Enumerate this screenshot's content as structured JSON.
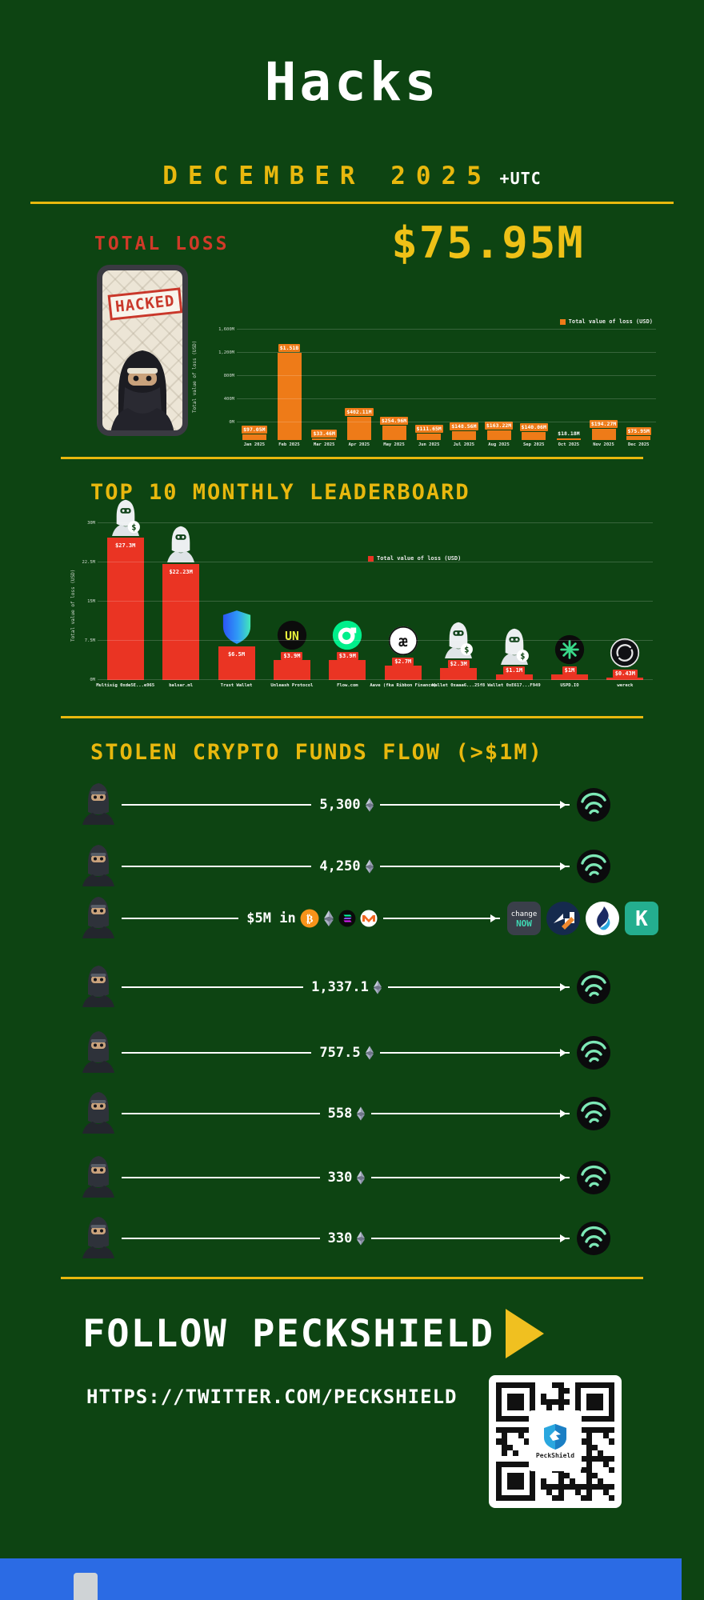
{
  "colors": {
    "background": "#0d4412",
    "accent_yellow": "#e8b80e",
    "title_red": "#d03a28",
    "bar_orange": "#ee7b18",
    "bar_red": "#ea3423",
    "footer_blue": "#2b6be4",
    "white": "#ffffff"
  },
  "header": {
    "title": "Hacks",
    "subtitle": "DECEMBER 2025",
    "timezone": "+UTC"
  },
  "total_loss": {
    "label": "TOTAL LOSS",
    "amount": "$75.95M",
    "sticker": "HACKED"
  },
  "chart_data": [
    {
      "type": "bar",
      "name": "monthly-loss-2025",
      "legend": "Total value of loss (USD)",
      "ylabel": "Total value of loss (USD)",
      "ylim": [
        0,
        1600
      ],
      "yticks": [
        "1,600M",
        "1,200M",
        "800M",
        "400M",
        "0M"
      ],
      "grid": true,
      "legend_position": "top-right",
      "categories": [
        "Jan 2025",
        "Feb 2025",
        "Mar 2025",
        "Apr 2025",
        "May 2025",
        "Jun 2025",
        "Jul 2025",
        "Aug 2025",
        "Sep 2025",
        "Oct 2025",
        "Nov 2025",
        "Dec 2025"
      ],
      "values": [
        97.05,
        1510,
        33.46,
        402.11,
        254.96,
        111.65,
        148.56,
        163.22,
        140.06,
        18.18,
        194.27,
        75.95
      ],
      "labels": [
        "$97.05M",
        "$1.51B",
        "$33.46M",
        "$402.11M",
        "$254.96M",
        "$111.65M",
        "$148.56M",
        "$163.22M",
        "$140.06M",
        "$18.18M",
        "$194.27M",
        "$75.95M"
      ],
      "bar_color": "#ee7b18"
    },
    {
      "type": "bar",
      "name": "top10-monthly-leaderboard",
      "legend": "Total value of loss (USD)",
      "ylabel": "Total value of loss (USD)",
      "ylim": [
        0,
        30
      ],
      "yticks": [
        "30M",
        "22.5M",
        "15M",
        "7.5M",
        "0M"
      ],
      "grid": true,
      "legend_position": "top-center",
      "categories": [
        "Multisig 0xde5E...e965",
        "balsar.ml",
        "Trust Wallet",
        "Unleash Protocol",
        "Flow.com",
        "Aave (fka Ribbon Finance)",
        "Wallet 0xaaa6...25f8",
        "Wallet 0xE617...F949",
        "USPD.IO",
        "wereck"
      ],
      "values": [
        27.3,
        22.23,
        6.5,
        3.9,
        3.9,
        2.7,
        2.3,
        1.1,
        1.0,
        0.43
      ],
      "labels": [
        "$27.3M",
        "$22.23M",
        "$6.5M",
        "$3.9M",
        "$3.9M",
        "$2.7M",
        "$2.3M",
        "$1.1M",
        "$1M",
        "$0.43M"
      ],
      "icons": [
        "hacker-moneybag-icon",
        "hacker-icon",
        "trust-wallet-icon",
        "unleash-icon",
        "flow-icon",
        "aave-icon",
        "hacker-moneybag-icon",
        "hacker-moneybag-icon",
        "uspd-icon",
        "wereck-icon"
      ],
      "bar_color": "#ea3423"
    }
  ],
  "leaderboard": {
    "title": "TOP 10 MONTHLY LEADERBOARD"
  },
  "flow": {
    "title": "STOLEN CRYPTO FUNDS FLOW (>$1M)",
    "rows": [
      {
        "amount": "5,300",
        "asset": "ETH",
        "source_icon": "hacker-avatar",
        "dest_icons": [
          "tornado-cash"
        ]
      },
      {
        "amount": "4,250",
        "asset": "ETH",
        "source_icon": "hacker-avatar",
        "dest_icons": [
          "tornado-cash"
        ]
      },
      {
        "amount": "$5M in",
        "asset": "BTC ETH SOL XMR",
        "coin_icons": [
          "btc",
          "eth",
          "sol",
          "xmr"
        ],
        "source_icon": "hacker-avatar",
        "dest_icons": [
          "changenow",
          "fixedfloat",
          "huobi",
          "kucoin"
        ]
      },
      {
        "amount": "1,337.1",
        "asset": "ETH",
        "source_icon": "hacker-avatar",
        "dest_icons": [
          "tornado-cash"
        ]
      },
      {
        "amount": "757.5",
        "asset": "ETH",
        "source_icon": "hacker-avatar",
        "dest_icons": [
          "tornado-cash"
        ]
      },
      {
        "amount": "558",
        "asset": "ETH",
        "source_icon": "hacker-avatar",
        "dest_icons": [
          "tornado-cash"
        ]
      },
      {
        "amount": "330",
        "asset": "ETH",
        "source_icon": "hacker-avatar",
        "dest_icons": [
          "tornado-cash"
        ]
      },
      {
        "amount": "330",
        "asset": "ETH",
        "source_icon": "hacker-avatar",
        "dest_icons": [
          "tornado-cash"
        ]
      }
    ],
    "changenow_text": {
      "line1": "change",
      "line2": "NOW"
    }
  },
  "footer": {
    "follow": "FOLLOW PECKSHIELD",
    "url": "HTTPS://TWITTER.COM/PECKSHIELD",
    "qr_label": "PeckShield"
  }
}
